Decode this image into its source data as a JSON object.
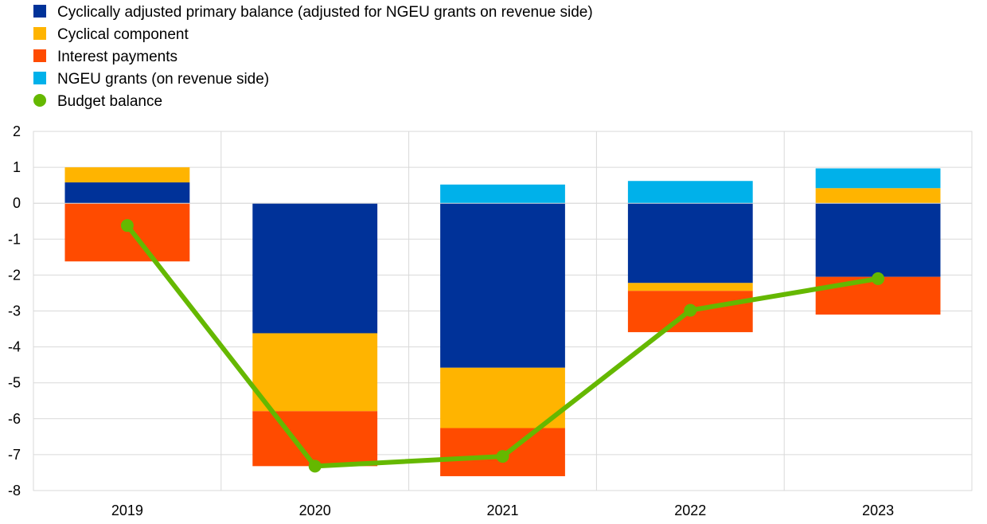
{
  "chart_data": {
    "type": "bar",
    "stacked": true,
    "categories": [
      "2019",
      "2020",
      "2021",
      "2022",
      "2023"
    ],
    "ylim": [
      -8,
      2
    ],
    "yticks": [
      2,
      1,
      0,
      -1,
      -2,
      -3,
      -4,
      -5,
      -6,
      -7,
      -8
    ],
    "grid": true,
    "legend_position": "top-left",
    "series": [
      {
        "name": "Cyclically adjusted primary balance (adjusted for NGEU grants on revenue side)",
        "kind": "bar",
        "color": "#003299",
        "values": [
          0.58,
          -3.62,
          -4.58,
          -2.22,
          -2.05
        ]
      },
      {
        "name": "Cyclical component",
        "kind": "bar",
        "color": "#FFB400",
        "values": [
          0.42,
          -2.17,
          -1.68,
          -0.22,
          0.42
        ]
      },
      {
        "name": "Interest payments",
        "kind": "bar",
        "color": "#FF4B00",
        "values": [
          -1.62,
          -1.53,
          -1.34,
          -1.15,
          -1.05
        ]
      },
      {
        "name": "NGEU grants (on revenue side)",
        "kind": "bar",
        "color": "#00B1EA",
        "values": [
          0.0,
          0.0,
          0.52,
          0.62,
          0.55
        ]
      },
      {
        "name": "Budget balance",
        "kind": "line",
        "color": "#65B800",
        "values": [
          -0.62,
          -7.32,
          -7.05,
          -2.98,
          -2.1
        ]
      }
    ]
  }
}
